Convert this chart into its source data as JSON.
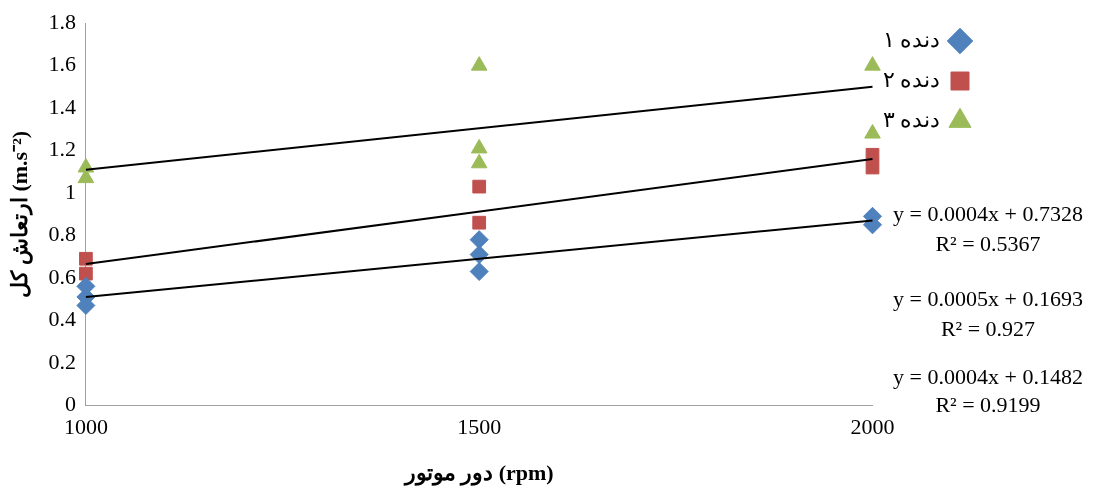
{
  "chart_data": {
    "type": "scatter",
    "xlabel": "دور موتور (rpm)",
    "ylabel": "ارتعاش کل (m.s⁻²)",
    "xlim": [
      1000,
      2000
    ],
    "xticks": [
      1000,
      1500,
      2000
    ],
    "ylim": [
      0,
      1.8
    ],
    "yticks": [
      0,
      0.2,
      0.4,
      0.6,
      0.8,
      1,
      1.2,
      1.4,
      1.6,
      1.8
    ],
    "grid": false,
    "legend": "top right",
    "series": [
      {
        "name": "دنده ۱",
        "color": "#4f81bd",
        "marker": "diamond",
        "x": [
          1000,
          1000,
          1000,
          1500,
          1500,
          1500,
          2000,
          2000
        ],
        "values": [
          0.47,
          0.51,
          0.56,
          0.78,
          0.71,
          0.63,
          0.89,
          0.85
        ]
      },
      {
        "name": "دنده ۲",
        "color": "#c0504d",
        "marker": "square",
        "x": [
          1000,
          1000,
          1500,
          1500,
          2000,
          2000
        ],
        "values": [
          0.62,
          0.69,
          1.03,
          0.86,
          1.18,
          1.12
        ]
      },
      {
        "name": "دنده ۳",
        "color": "#9bbb59",
        "marker": "triangle",
        "x": [
          1000,
          1000,
          1500,
          1500,
          1500,
          2000,
          2000
        ],
        "values": [
          1.07,
          1.12,
          1.6,
          1.21,
          1.14,
          1.6,
          1.28
        ]
      },
      {
        "type": "line",
        "color": "#000000",
        "marker": "none",
        "x": [
          1000,
          2000
        ],
        "values": [
          1.11,
          1.5
        ]
      },
      {
        "type": "line",
        "color": "#000000",
        "marker": "none",
        "x": [
          1000,
          2000
        ],
        "values": [
          0.665,
          1.16
        ]
      },
      {
        "type": "line",
        "color": "#000000",
        "marker": "none",
        "x": [
          1000,
          2000
        ],
        "values": [
          0.51,
          0.87
        ]
      }
    ],
    "annotations": [
      "y = 0.0004x + 0.7328",
      "R² = 0.5367",
      "y = 0.0005x + 0.1693",
      "R² = 0.927",
      "y = 0.0004x + 0.1482",
      "R² = 0.9199"
    ]
  }
}
